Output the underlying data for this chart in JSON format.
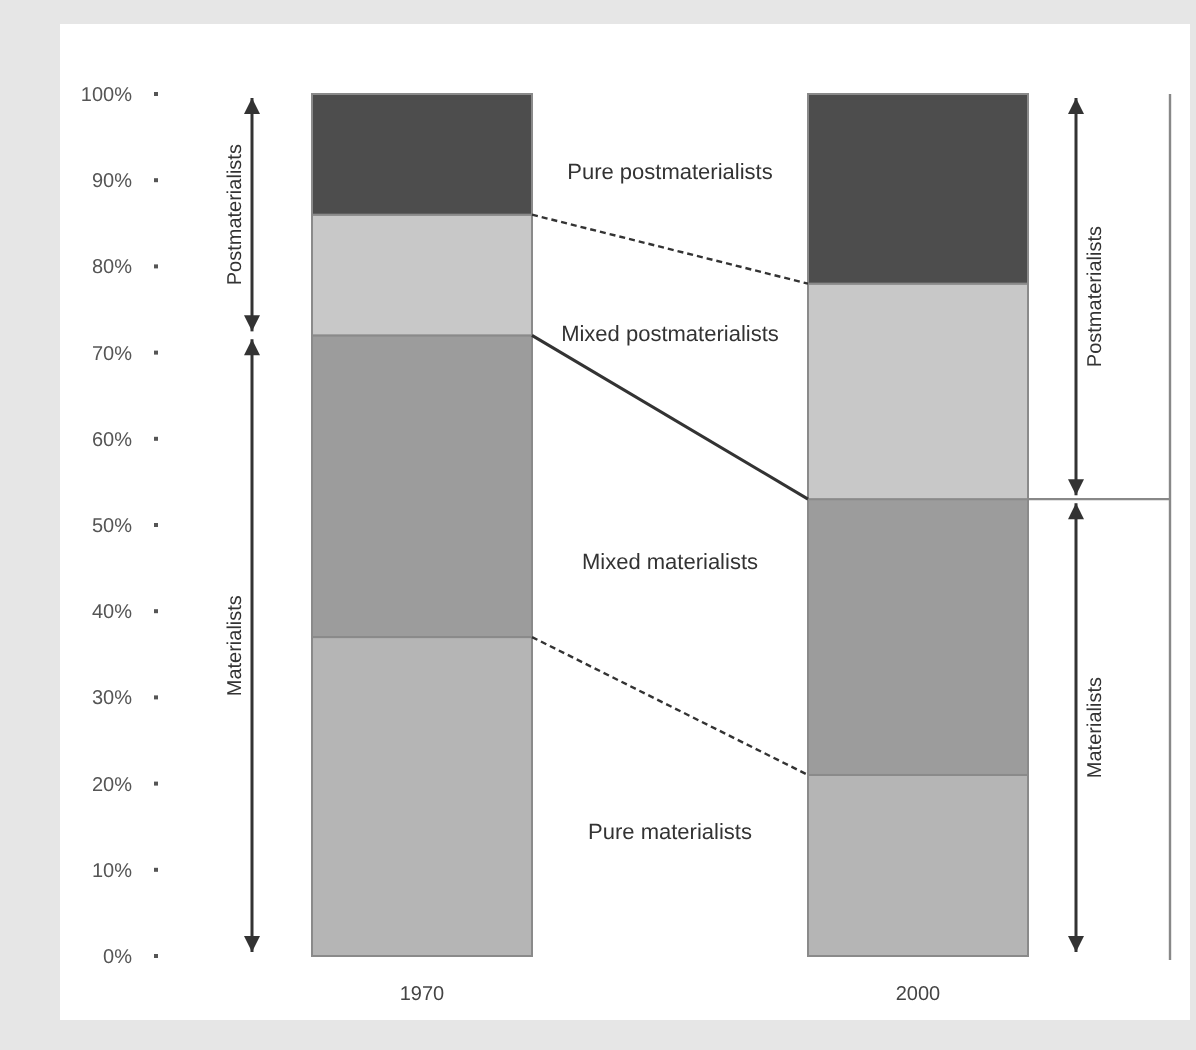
{
  "chart_data": {
    "type": "bar",
    "stacked": true,
    "categories": [
      "1970",
      "2000"
    ],
    "series": [
      {
        "name": "Pure materialists",
        "color": "#b5b5b5",
        "values": [
          37,
          21
        ]
      },
      {
        "name": "Mixed materialists",
        "color": "#9c9c9c",
        "values": [
          35,
          32
        ]
      },
      {
        "name": "Mixed postmaterialists",
        "color": "#c8c8c8",
        "values": [
          14,
          25
        ]
      },
      {
        "name": "Pure postmaterialists",
        "color": "#4d4d4d",
        "values": [
          14,
          22
        ]
      }
    ],
    "ylim": [
      0,
      100
    ],
    "yticks": [
      {
        "value": 0,
        "label": "0%"
      },
      {
        "value": 10,
        "label": "10%"
      },
      {
        "value": 20,
        "label": "20%"
      },
      {
        "value": 30,
        "label": "30%"
      },
      {
        "value": 40,
        "label": "40%"
      },
      {
        "value": 50,
        "label": "50%"
      },
      {
        "value": 60,
        "label": "60%"
      },
      {
        "value": 70,
        "label": "70%"
      },
      {
        "value": 80,
        "label": "80%"
      },
      {
        "value": 90,
        "label": "90%"
      },
      {
        "value": 100,
        "label": "100%"
      }
    ],
    "grid": false,
    "annotations": [
      "Postmaterialists",
      "Materialists",
      "Postmaterialists",
      "Materialists"
    ]
  }
}
